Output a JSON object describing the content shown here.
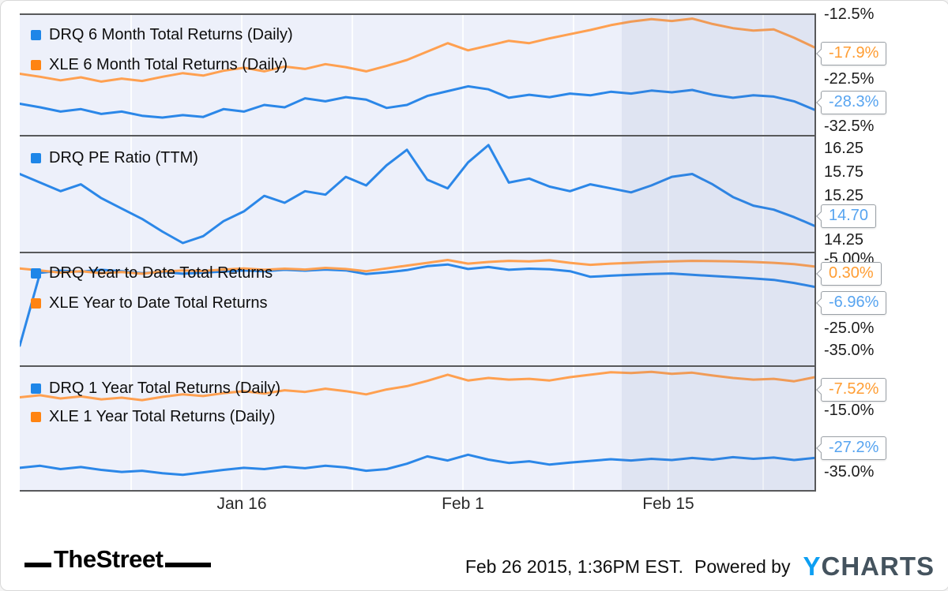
{
  "colors": {
    "line_blue": "#2b87e8",
    "line_orange": "#ffa050",
    "legend_blue": "#1e86e8",
    "legend_orange": "#ff8412",
    "callout_blue": "#57a4f0",
    "callout_orange": "#ff9d33",
    "plot_background": "#edf0fa",
    "panel_border": "#58595b"
  },
  "xaxis": {
    "labels": [
      "Jan 16",
      "Feb 1",
      "Feb 15"
    ]
  },
  "panels": [
    {
      "legend": [
        {
          "label": "DRQ 6 Month Total Returns (Daily)",
          "color": "blue"
        },
        {
          "label": "XLE 6 Month Total Returns (Daily)",
          "color": "orange"
        }
      ],
      "ticks": [
        "-12.5%",
        "-22.5%",
        "-32.5%"
      ],
      "callouts": [
        {
          "value": "-17.9%",
          "series": "XLE 6 Month Total Returns (Daily)"
        },
        {
          "value": "-28.3%",
          "series": "DRQ 6 Month Total Returns (Daily)"
        }
      ]
    },
    {
      "legend": [
        {
          "label": "DRQ PE Ratio (TTM)",
          "color": "blue"
        }
      ],
      "ticks": [
        "16.25",
        "15.75",
        "15.25",
        "14.25"
      ],
      "callouts": [
        {
          "value": "14.70",
          "series": "DRQ PE Ratio (TTM)"
        }
      ]
    },
    {
      "legend": [
        {
          "label": "DRQ Year to Date Total Returns",
          "color": "blue"
        },
        {
          "label": "XLE Year to Date Total Returns",
          "color": "orange"
        }
      ],
      "ticks": [
        "-5.00%",
        "-25.0%",
        "-35.0%"
      ],
      "callouts": [
        {
          "value": "0.30%",
          "series": "XLE Year to Date Total Returns"
        },
        {
          "value": "-6.96%",
          "series": "DRQ Year to Date Total Returns"
        }
      ]
    },
    {
      "legend": [
        {
          "label": "DRQ 1 Year Total Returns (Daily)",
          "color": "blue"
        },
        {
          "label": "XLE 1 Year Total Returns (Daily)",
          "color": "orange"
        }
      ],
      "ticks": [
        "-15.0%",
        "-35.0%"
      ],
      "callouts": [
        {
          "value": "-7.52%",
          "series": "XLE 1 Year Total Returns (Daily)"
        },
        {
          "value": "-27.2%",
          "series": "DRQ 1 Year Total Returns (Daily)"
        }
      ]
    }
  ],
  "footer": {
    "thestreet": "TheStreet",
    "timestamp": "Feb 26 2015, 1:36PM EST.",
    "powered_by": "Powered by",
    "ycharts_y": "Y",
    "ycharts_rest": "CHARTS"
  },
  "chart_data": [
    {
      "type": "line",
      "title": "DRQ vs XLE 6 Month Total Returns (Daily)",
      "x_range": [
        "Jan 2 2015",
        "Feb 26 2015"
      ],
      "x_tick_labels": [
        "Jan 16",
        "Feb 1",
        "Feb 15"
      ],
      "ylim": [
        -32.5,
        -12.5
      ],
      "yticks": [
        -12.5,
        -22.5,
        -32.5
      ],
      "grid": true,
      "legend_position": "top-left",
      "series": [
        {
          "name": "DRQ 6 Month Total Returns (Daily)",
          "color": "#2b87e8",
          "end_value": -28.3,
          "values": [
            -27.3,
            -27.9,
            -28.6,
            -28.2,
            -29.0,
            -28.6,
            -29.3,
            -29.6,
            -29.2,
            -29.5,
            -28.2,
            -28.6,
            -27.5,
            -27.9,
            -26.4,
            -26.9,
            -26.2,
            -26.6,
            -28.0,
            -27.5,
            -26.0,
            -25.2,
            -24.4,
            -24.9,
            -26.3,
            -25.8,
            -26.2,
            -25.6,
            -25.9,
            -25.3,
            -25.6,
            -25.1,
            -25.4,
            -25.0,
            -25.8,
            -26.3,
            -25.9,
            -26.1,
            -26.9,
            -28.3
          ]
        },
        {
          "name": "XLE 6 Month Total Returns (Daily)",
          "color": "#ffa050",
          "end_value": -17.9,
          "values": [
            -22.3,
            -22.8,
            -23.4,
            -22.9,
            -23.6,
            -23.1,
            -23.5,
            -22.8,
            -22.2,
            -22.6,
            -21.8,
            -21.3,
            -21.9,
            -21.1,
            -21.5,
            -20.7,
            -21.2,
            -21.9,
            -21.0,
            -20.0,
            -18.6,
            -17.2,
            -18.4,
            -17.6,
            -16.8,
            -17.2,
            -16.4,
            -15.7,
            -15.0,
            -14.2,
            -13.6,
            -13.2,
            -13.5,
            -13.1,
            -14.0,
            -14.7,
            -15.1,
            -14.9,
            -16.3,
            -17.9
          ]
        }
      ]
    },
    {
      "type": "line",
      "title": "DRQ PE Ratio (TTM)",
      "x_range": [
        "Jan 2 2015",
        "Feb 26 2015"
      ],
      "x_tick_labels": [
        "Jan 16",
        "Feb 1",
        "Feb 15"
      ],
      "ylim": [
        14.25,
        16.25
      ],
      "yticks": [
        16.25,
        15.75,
        15.25,
        14.75,
        14.25
      ],
      "grid": true,
      "legend_position": "top-left",
      "series": [
        {
          "name": "DRQ PE Ratio (TTM)",
          "color": "#2b87e8",
          "end_value": 14.7,
          "values": [
            15.6,
            15.45,
            15.3,
            15.42,
            15.18,
            15.0,
            14.82,
            14.6,
            14.4,
            14.52,
            14.78,
            14.95,
            15.22,
            15.1,
            15.3,
            15.24,
            15.55,
            15.4,
            15.75,
            16.02,
            15.5,
            15.35,
            15.8,
            16.1,
            15.45,
            15.52,
            15.38,
            15.3,
            15.42,
            15.35,
            15.28,
            15.4,
            15.55,
            15.6,
            15.42,
            15.2,
            15.05,
            14.98,
            14.85,
            14.7
          ]
        }
      ]
    },
    {
      "type": "line",
      "title": "DRQ vs XLE Year to Date Total Returns",
      "x_range": [
        "Jan 2 2015",
        "Feb 26 2015"
      ],
      "x_tick_labels": [
        "Jan 16",
        "Feb 1",
        "Feb 15"
      ],
      "ylim": [
        -35,
        5
      ],
      "yticks": [
        -5,
        -25,
        -35
      ],
      "grid": true,
      "legend_position": "top-left",
      "series": [
        {
          "name": "DRQ Year to Date Total Returns",
          "color": "#2b87e8",
          "end_value": -6.96,
          "values": [
            -28.0,
            -2.0,
            -1.2,
            -1.6,
            -0.9,
            -1.4,
            -2.1,
            -1.7,
            -2.3,
            -1.9,
            -1.5,
            -1.1,
            -1.4,
            -0.9,
            -1.2,
            -0.8,
            -1.1,
            -2.4,
            -1.8,
            -1.0,
            0.4,
            1.0,
            -0.6,
            0.1,
            -0.9,
            -0.5,
            -0.7,
            -1.4,
            -3.4,
            -3.0,
            -2.7,
            -2.4,
            -2.2,
            -2.7,
            -3.1,
            -3.5,
            -4.0,
            -4.5,
            -5.6,
            -6.96
          ]
        },
        {
          "name": "XLE Year to Date Total Returns",
          "color": "#ffa050",
          "end_value": 0.3,
          "values": [
            -0.4,
            -1.1,
            -1.9,
            -1.4,
            -2.1,
            -1.7,
            -2.3,
            -1.5,
            -1.1,
            -1.3,
            -0.8,
            -0.4,
            -0.9,
            -0.5,
            -0.8,
            -0.2,
            -0.6,
            -1.4,
            -0.4,
            0.6,
            1.6,
            2.6,
            1.3,
            1.9,
            2.3,
            2.1,
            2.5,
            1.6,
            0.9,
            1.3,
            1.6,
            1.9,
            2.1,
            2.3,
            2.2,
            2.1,
            1.9,
            1.6,
            1.1,
            0.3
          ]
        }
      ]
    },
    {
      "type": "line",
      "title": "DRQ vs XLE 1 Year Total Returns (Daily)",
      "x_range": [
        "Jan 2 2015",
        "Feb 26 2015"
      ],
      "x_tick_labels": [
        "Jan 16",
        "Feb 1",
        "Feb 15"
      ],
      "ylim": [
        -35,
        -5
      ],
      "yticks": [
        -15,
        -35
      ],
      "grid": true,
      "legend_position": "top-left",
      "series": [
        {
          "name": "DRQ 1 Year Total Returns (Daily)",
          "color": "#2b87e8",
          "end_value": -27.2,
          "values": [
            -29.6,
            -29.1,
            -29.9,
            -29.4,
            -30.1,
            -30.6,
            -30.3,
            -30.9,
            -31.3,
            -30.7,
            -30.1,
            -29.6,
            -29.9,
            -29.3,
            -29.7,
            -29.1,
            -29.5,
            -30.3,
            -29.9,
            -28.6,
            -26.8,
            -27.8,
            -26.4,
            -27.6,
            -28.4,
            -28.0,
            -28.8,
            -28.3,
            -27.9,
            -27.5,
            -27.8,
            -27.4,
            -27.7,
            -27.2,
            -27.6,
            -27.0,
            -27.4,
            -27.1,
            -27.7,
            -27.2
          ]
        },
        {
          "name": "XLE 1 Year Total Returns (Daily)",
          "color": "#ffa050",
          "end_value": -7.52,
          "values": [
            -12.4,
            -11.9,
            -12.7,
            -12.2,
            -12.9,
            -12.5,
            -13.1,
            -12.3,
            -11.7,
            -12.1,
            -11.4,
            -10.9,
            -11.5,
            -10.7,
            -11.1,
            -10.3,
            -10.9,
            -11.7,
            -10.5,
            -9.7,
            -8.4,
            -6.9,
            -8.3,
            -7.7,
            -8.1,
            -7.9,
            -8.3,
            -7.5,
            -6.9,
            -6.3,
            -6.5,
            -6.2,
            -6.7,
            -6.4,
            -7.1,
            -7.7,
            -8.1,
            -7.9,
            -8.5,
            -7.52
          ]
        }
      ]
    }
  ]
}
